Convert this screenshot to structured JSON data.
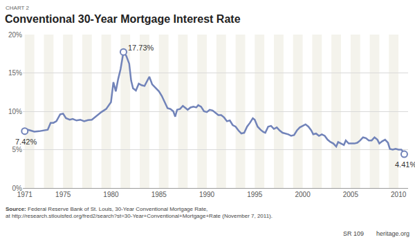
{
  "chart_data": {
    "type": "line",
    "kicker": "CHART 2",
    "title": "Conventional 30-Year Mortgage Interest Rate",
    "x": [
      1971.0,
      1971.3,
      1971.6,
      1972.0,
      1972.5,
      1973.0,
      1973.4,
      1973.7,
      1974.0,
      1974.3,
      1974.7,
      1975.0,
      1975.3,
      1975.7,
      1976.0,
      1976.4,
      1976.8,
      1977.2,
      1977.6,
      1978.0,
      1978.5,
      1979.0,
      1979.5,
      1979.8,
      1980.0,
      1980.25,
      1980.5,
      1980.75,
      1981.0,
      1981.3,
      1981.6,
      1981.9,
      1982.1,
      1982.3,
      1982.6,
      1982.9,
      1983.2,
      1983.5,
      1983.8,
      1984.0,
      1984.3,
      1984.7,
      1985.0,
      1985.3,
      1985.6,
      1985.9,
      1986.2,
      1986.5,
      1986.7,
      1986.9,
      1987.2,
      1987.5,
      1987.8,
      1988.0,
      1988.3,
      1988.6,
      1988.9,
      1989.1,
      1989.4,
      1989.7,
      1990.0,
      1990.3,
      1990.6,
      1990.9,
      1991.2,
      1991.5,
      1991.8,
      1992.1,
      1992.4,
      1992.7,
      1993.0,
      1993.3,
      1993.6,
      1993.9,
      1994.2,
      1994.5,
      1994.8,
      1995.0,
      1995.3,
      1995.6,
      1995.9,
      1996.1,
      1996.4,
      1996.7,
      1997.0,
      1997.3,
      1997.6,
      1997.9,
      1998.2,
      1998.5,
      1998.8,
      1999.1,
      1999.4,
      1999.7,
      2000.0,
      2000.3,
      2000.6,
      2000.9,
      2001.1,
      2001.4,
      2001.7,
      2002.0,
      2002.3,
      2002.6,
      2002.9,
      2003.2,
      2003.5,
      2003.7,
      2004.0,
      2004.3,
      2004.5,
      2004.8,
      2005.1,
      2005.4,
      2005.7,
      2006.0,
      2006.3,
      2006.6,
      2006.9,
      2007.2,
      2007.5,
      2007.8,
      2008.0,
      2008.3,
      2008.6,
      2008.9,
      2009.1,
      2009.4,
      2009.7,
      2010.0,
      2010.3,
      2010.5,
      2010.6
    ],
    "series": [
      {
        "name": "30-Year Conventional Mortgage Rate",
        "color": "#7183b9",
        "values": [
          7.42,
          7.6,
          7.5,
          7.35,
          7.4,
          7.5,
          7.6,
          8.5,
          8.5,
          8.7,
          9.6,
          9.7,
          9.1,
          8.9,
          9.0,
          8.8,
          8.9,
          8.7,
          8.85,
          8.9,
          9.4,
          9.9,
          10.3,
          10.8,
          11.2,
          13.8,
          12.6,
          14.2,
          15.5,
          17.73,
          17.2,
          16.2,
          14.0,
          13.0,
          12.7,
          13.6,
          13.4,
          13.3,
          14.0,
          14.5,
          13.5,
          13.0,
          12.6,
          12.0,
          11.2,
          10.4,
          10.3,
          10.0,
          9.3,
          10.2,
          10.3,
          10.7,
          10.4,
          10.2,
          10.5,
          10.6,
          10.5,
          10.8,
          10.6,
          10.0,
          9.9,
          10.2,
          10.1,
          9.8,
          9.5,
          9.5,
          9.2,
          8.7,
          8.8,
          8.2,
          8.0,
          7.5,
          7.1,
          7.2,
          8.0,
          8.5,
          9.1,
          8.9,
          8.0,
          7.6,
          7.3,
          7.2,
          8.0,
          8.1,
          7.7,
          7.9,
          7.5,
          7.2,
          7.1,
          7.0,
          6.8,
          6.9,
          7.5,
          7.9,
          8.1,
          8.3,
          8.0,
          7.5,
          7.0,
          7.1,
          6.8,
          7.0,
          6.8,
          6.3,
          6.0,
          5.8,
          5.4,
          6.0,
          5.8,
          5.6,
          6.2,
          5.8,
          5.8,
          5.8,
          5.9,
          6.2,
          6.6,
          6.5,
          6.2,
          6.2,
          6.6,
          6.3,
          5.8,
          6.1,
          6.3,
          5.9,
          5.1,
          5.0,
          5.1,
          5.0,
          5.0,
          4.7,
          4.41
        ]
      }
    ],
    "xlim": [
      1970.8,
      2011.0
    ],
    "xticks": [
      1971,
      1975,
      1980,
      1985,
      1990,
      1995,
      2000,
      2005,
      2010
    ],
    "ylim": [
      0,
      20
    ],
    "yticks": [
      {
        "value": 0,
        "label": "0%"
      },
      {
        "value": 5,
        "label": "5%"
      },
      {
        "value": 10,
        "label": "10%"
      },
      {
        "value": 15,
        "label": "15%"
      },
      {
        "value": 20,
        "label": "20%"
      }
    ],
    "grid": true,
    "annotations": [
      {
        "text": "7.42%",
        "x": 1971.0,
        "y": 7.42
      },
      {
        "text": "17.73%",
        "x": 1981.3,
        "y": 17.73
      },
      {
        "text": "4.41%",
        "x": 2010.6,
        "y": 4.41
      }
    ],
    "source_label": "Source:",
    "source": [
      "Federal Reserve Bank of St. Louis, 30-Year Conventional Mortgage Rate,",
      "at http://research.stlouisfed.org/fred2/search?st=30-Year+Conventional+Mortgage+Rate (November 7, 2011)."
    ],
    "footer": [
      "SR 109",
      "heritage.org"
    ]
  }
}
